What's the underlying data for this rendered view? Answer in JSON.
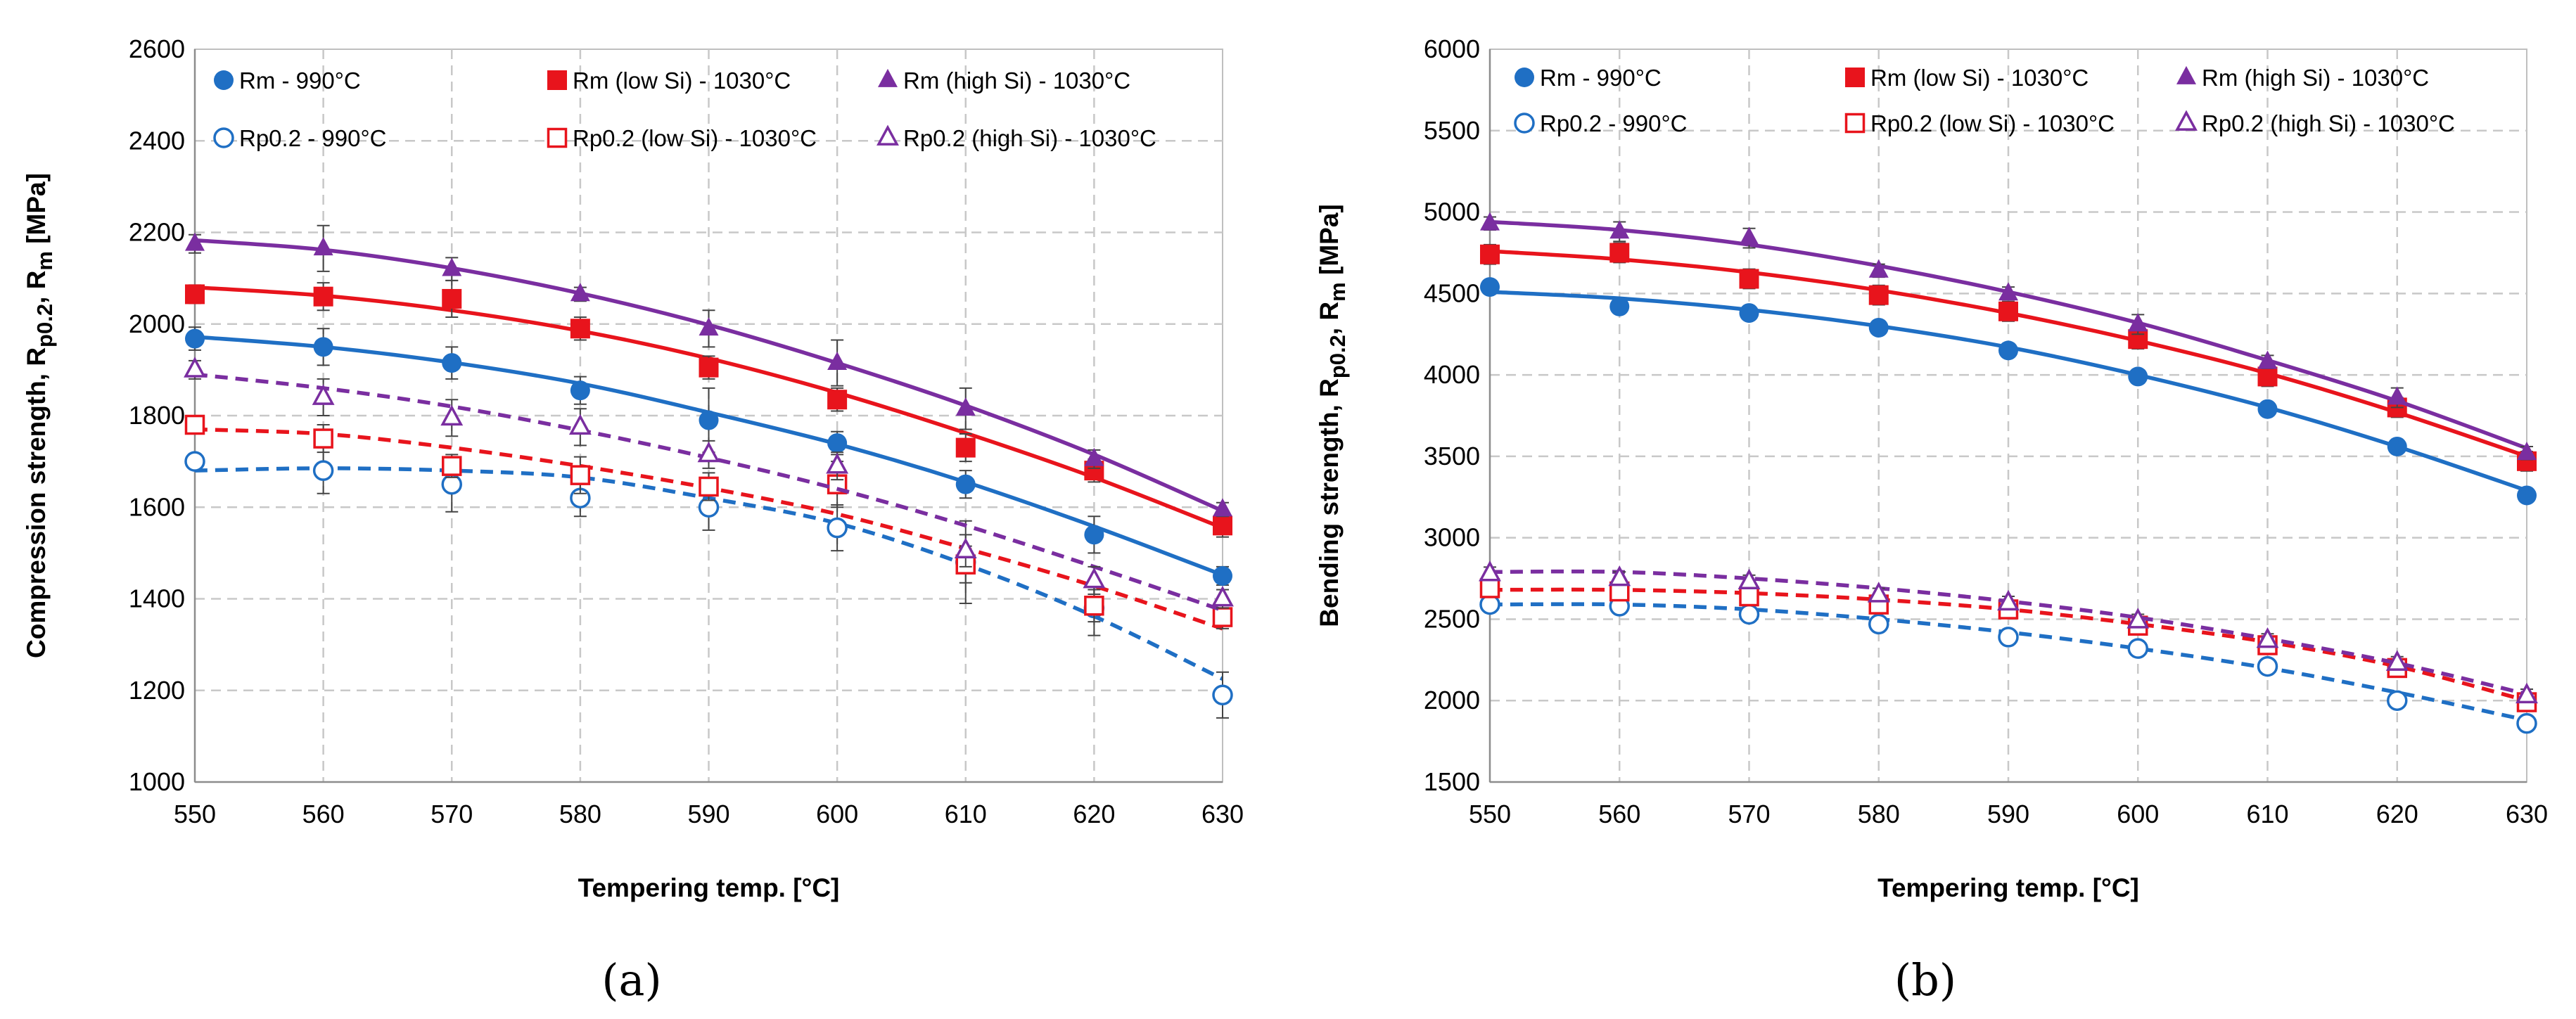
{
  "chart_data": [
    {
      "type": "scatter",
      "panel_label": "(a)",
      "ylabel": "Compression strength, R",
      "ylabel_parts": {
        "main": "Compression strength, R",
        "sub1": "p0.2",
        "sep": ", R",
        "sub2": "m",
        "unit": " [MPa]"
      },
      "xlabel": "Tempering temp. [°C]",
      "xlim": [
        550,
        630
      ],
      "ylim": [
        1000,
        2600
      ],
      "xticks": [
        "550",
        "560",
        "570",
        "580",
        "590",
        "600",
        "610",
        "620",
        "630"
      ],
      "yticks": [
        "1000",
        "1200",
        "1400",
        "1600",
        "1800",
        "2000",
        "2200",
        "2400",
        "2600"
      ],
      "grid": true,
      "legend_position": "top",
      "x": [
        550,
        560,
        570,
        580,
        590,
        600,
        610,
        620,
        630
      ],
      "series": [
        {
          "name": "Rm - 990°C",
          "color": "#1f6fc4",
          "marker": "circle",
          "filled": true,
          "line": "solid",
          "values": [
            1968,
            1950,
            1915,
            1855,
            1790,
            1740,
            1650,
            1540,
            1450
          ],
          "errors": [
            25,
            40,
            35,
            30,
            70,
            25,
            30,
            40,
            20
          ],
          "fit": [
            1972,
            1950,
            1916,
            1870,
            1807,
            1738,
            1655,
            1558,
            1452
          ]
        },
        {
          "name": "Rm (low Si) - 1030°C",
          "color": "#e8141c",
          "marker": "square",
          "filled": true,
          "line": "solid",
          "values": [
            2065,
            2060,
            2055,
            1990,
            1905,
            1835,
            1730,
            1680,
            1560
          ],
          "errors": [
            20,
            30,
            40,
            25,
            25,
            25,
            30,
            25,
            25
          ],
          "fit": [
            2080,
            2062,
            2030,
            1985,
            1925,
            1850,
            1762,
            1665,
            1555
          ]
        },
        {
          "name": "Rm (high Si) - 1030°C",
          "color": "#7a2ea0",
          "marker": "triangle",
          "filled": true,
          "line": "solid",
          "values": [
            2175,
            2165,
            2120,
            2065,
            1990,
            1915,
            1815,
            1705,
            1595
          ],
          "errors": [
            20,
            50,
            25,
            15,
            40,
            50,
            45,
            20,
            15
          ],
          "fit": [
            2183,
            2162,
            2122,
            2067,
            1998,
            1915,
            1822,
            1715,
            1592
          ]
        },
        {
          "name": "Rp0.2 - 990°C",
          "color": "#1f6fc4",
          "marker": "circle",
          "filled": false,
          "line": "dashed",
          "values": [
            1700,
            1680,
            1650,
            1620,
            1600,
            1555,
            1480,
            1380,
            1190
          ],
          "errors": [
            15,
            50,
            60,
            40,
            50,
            50,
            90,
            60,
            50
          ],
          "fit": [
            1680,
            1685,
            1680,
            1665,
            1620,
            1565,
            1475,
            1362,
            1225
          ]
        },
        {
          "name": "Rp0.2 (low Si) - 1030°C",
          "color": "#e8141c",
          "marker": "square",
          "filled": false,
          "line": "dashed",
          "values": [
            1780,
            1750,
            1690,
            1670,
            1645,
            1650,
            1475,
            1385,
            1360
          ],
          "errors": [
            15,
            30,
            25,
            40,
            30,
            50,
            40,
            35,
            25
          ],
          "fit": [
            1770,
            1760,
            1730,
            1690,
            1642,
            1585,
            1510,
            1428,
            1335
          ]
        },
        {
          "name": "Rp0.2 (high Si) - 1030°C",
          "color": "#7a2ea0",
          "marker": "triangle",
          "filled": false,
          "line": "dashed",
          "values": [
            1900,
            1840,
            1795,
            1775,
            1715,
            1690,
            1505,
            1440,
            1400
          ],
          "errors": [
            20,
            40,
            40,
            40,
            30,
            30,
            35,
            30,
            20
          ],
          "fit": [
            1890,
            1860,
            1820,
            1768,
            1708,
            1640,
            1560,
            1470,
            1375
          ]
        }
      ]
    },
    {
      "type": "scatter",
      "panel_label": "(b)",
      "ylabel": "Bending strength, R",
      "ylabel_parts": {
        "main": "Bending strength, R",
        "sub1": "p0.2",
        "sep": ", R",
        "sub2": "m",
        "unit": " [MPa]"
      },
      "xlabel": "Tempering temp. [°C]",
      "xlim": [
        550,
        630
      ],
      "ylim": [
        1500,
        6000
      ],
      "xticks": [
        "550",
        "560",
        "570",
        "580",
        "590",
        "600",
        "610",
        "620",
        "630"
      ],
      "yticks": [
        "1500",
        "2000",
        "2500",
        "3000",
        "3500",
        "4000",
        "4500",
        "5000",
        "5500",
        "6000"
      ],
      "grid": true,
      "legend_position": "top",
      "x": [
        550,
        560,
        570,
        580,
        590,
        600,
        610,
        620,
        630
      ],
      "series": [
        {
          "name": "Rm - 990°C",
          "color": "#1f6fc4",
          "marker": "circle",
          "filled": true,
          "line": "solid",
          "values": [
            4540,
            4420,
            4380,
            4290,
            4150,
            3990,
            3790,
            3560,
            3260
          ],
          "errors": [
            40,
            40,
            40,
            40,
            40,
            40,
            40,
            40,
            40
          ],
          "fit": [
            4510,
            4470,
            4400,
            4300,
            4170,
            4000,
            3800,
            3560,
            3290
          ]
        },
        {
          "name": "Rm (low Si) - 1030°C",
          "color": "#e8141c",
          "marker": "square",
          "filled": true,
          "line": "solid",
          "values": [
            4740,
            4750,
            4590,
            4490,
            4390,
            4220,
            3990,
            3800,
            3470
          ],
          "errors": [
            60,
            60,
            60,
            60,
            60,
            60,
            60,
            60,
            60
          ],
          "fit": [
            4760,
            4710,
            4630,
            4520,
            4380,
            4210,
            4010,
            3770,
            3500
          ]
        },
        {
          "name": "Rm (high Si) - 1030°C",
          "color": "#7a2ea0",
          "marker": "triangle",
          "filled": true,
          "line": "solid",
          "values": [
            4930,
            4880,
            4840,
            4640,
            4500,
            4310,
            4080,
            3860,
            3520
          ],
          "errors": [
            40,
            60,
            60,
            40,
            40,
            60,
            40,
            60,
            40
          ],
          "fit": [
            4940,
            4890,
            4800,
            4670,
            4510,
            4320,
            4090,
            3840,
            3550
          ]
        },
        {
          "name": "Rp0.2 - 990°C",
          "color": "#1f6fc4",
          "marker": "circle",
          "filled": false,
          "line": "dashed",
          "values": [
            2590,
            2580,
            2530,
            2470,
            2390,
            2320,
            2210,
            2000,
            1860
          ],
          "errors": [
            40,
            40,
            40,
            40,
            40,
            40,
            40,
            40,
            40
          ],
          "fit": [
            2590,
            2590,
            2560,
            2500,
            2420,
            2320,
            2200,
            2050,
            1880
          ]
        },
        {
          "name": "Rp0.2 (low Si) - 1030°C",
          "color": "#e8141c",
          "marker": "square",
          "filled": false,
          "line": "dashed",
          "values": [
            2690,
            2670,
            2640,
            2590,
            2560,
            2460,
            2340,
            2200,
            1990
          ],
          "errors": [
            40,
            40,
            40,
            40,
            40,
            40,
            40,
            40,
            40
          ],
          "fit": [
            2680,
            2680,
            2660,
            2620,
            2560,
            2470,
            2360,
            2210,
            2000
          ]
        },
        {
          "name": "Rp0.2 (high Si) - 1030°C",
          "color": "#7a2ea0",
          "marker": "triangle",
          "filled": false,
          "line": "dashed",
          "values": [
            2780,
            2750,
            2730,
            2650,
            2600,
            2490,
            2370,
            2230,
            2030
          ],
          "errors": [
            40,
            40,
            40,
            40,
            40,
            40,
            40,
            40,
            40
          ],
          "fit": [
            2790,
            2790,
            2750,
            2690,
            2610,
            2510,
            2380,
            2230,
            2040
          ]
        }
      ]
    }
  ]
}
